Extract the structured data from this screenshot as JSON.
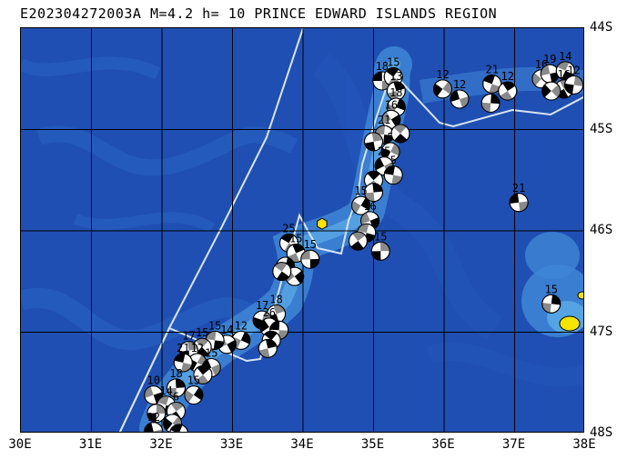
{
  "header": {
    "title": "E202304272003A M=4.2 h= 10 PRINCE EDWARD ISLANDS REGION"
  },
  "map": {
    "longitude_labels": [
      "30E",
      "31E",
      "32E",
      "33E",
      "34E",
      "35E",
      "36E",
      "37E",
      "38E"
    ],
    "latitude_labels": [
      "44S",
      "45S",
      "46S",
      "47S",
      "48S"
    ],
    "colors": {
      "ocean_deep": "#1f4fb3",
      "ocean_mid": "#2a63c6",
      "ridge": "#3f86d6",
      "shallow": "#5aa7e6",
      "island": "#f5e400",
      "plate_boundary": "#d8e4f2",
      "grid": "#000000",
      "event_marker": "#ffe600"
    },
    "event": {
      "lon": 34.27,
      "lat": 45.93
    },
    "mechanisms": [
      {
        "lon": 35.12,
        "lat": 44.52,
        "label": "18"
      },
      {
        "lon": 35.28,
        "lat": 44.48,
        "label": "15"
      },
      {
        "lon": 35.32,
        "lat": 44.62,
        "label": "13"
      },
      {
        "lon": 35.32,
        "lat": 44.78,
        "label": "18"
      },
      {
        "lon": 35.25,
        "lat": 44.9,
        "label": "16"
      },
      {
        "lon": 35.15,
        "lat": 45.05,
        "label": "21"
      },
      {
        "lon": 35.38,
        "lat": 45.04,
        "label": ""
      },
      {
        "lon": 35.0,
        "lat": 45.12,
        "label": ""
      },
      {
        "lon": 35.24,
        "lat": 45.22,
        "label": "5"
      },
      {
        "lon": 35.15,
        "lat": 45.36,
        "label": "25"
      },
      {
        "lon": 35.28,
        "lat": 45.45,
        "label": "5"
      },
      {
        "lon": 35.0,
        "lat": 45.5,
        "label": ""
      },
      {
        "lon": 35.0,
        "lat": 45.62,
        "label": ""
      },
      {
        "lon": 34.82,
        "lat": 45.75,
        "label": "15"
      },
      {
        "lon": 34.95,
        "lat": 45.9,
        "label": "16"
      },
      {
        "lon": 34.9,
        "lat": 46.02,
        "label": ""
      },
      {
        "lon": 34.78,
        "lat": 46.1,
        "label": ""
      },
      {
        "lon": 35.1,
        "lat": 46.2,
        "label": "15"
      },
      {
        "lon": 35.98,
        "lat": 44.6,
        "label": "12"
      },
      {
        "lon": 36.22,
        "lat": 44.7,
        "label": "12"
      },
      {
        "lon": 36.68,
        "lat": 44.55,
        "label": "21"
      },
      {
        "lon": 36.9,
        "lat": 44.62,
        "label": "12"
      },
      {
        "lon": 36.66,
        "lat": 44.74,
        "label": ""
      },
      {
        "lon": 37.38,
        "lat": 44.5,
        "label": "16"
      },
      {
        "lon": 37.5,
        "lat": 44.45,
        "label": "19"
      },
      {
        "lon": 37.72,
        "lat": 44.42,
        "label": "14"
      },
      {
        "lon": 37.7,
        "lat": 44.6,
        "label": "16"
      },
      {
        "lon": 37.84,
        "lat": 44.56,
        "label": "12"
      },
      {
        "lon": 37.52,
        "lat": 44.62,
        "label": ""
      },
      {
        "lon": 37.06,
        "lat": 45.72,
        "label": "21"
      },
      {
        "lon": 33.8,
        "lat": 46.12,
        "label": "25"
      },
      {
        "lon": 33.9,
        "lat": 46.22,
        "label": "15"
      },
      {
        "lon": 33.75,
        "lat": 46.35,
        "label": ""
      },
      {
        "lon": 33.88,
        "lat": 46.45,
        "label": ""
      },
      {
        "lon": 34.1,
        "lat": 46.28,
        "label": "15"
      },
      {
        "lon": 33.7,
        "lat": 46.4,
        "label": ""
      },
      {
        "lon": 33.62,
        "lat": 46.82,
        "label": "18"
      },
      {
        "lon": 33.42,
        "lat": 46.88,
        "label": "17"
      },
      {
        "lon": 33.52,
        "lat": 46.95,
        "label": "26"
      },
      {
        "lon": 33.66,
        "lat": 46.98,
        "label": ""
      },
      {
        "lon": 33.55,
        "lat": 47.08,
        "label": ""
      },
      {
        "lon": 33.5,
        "lat": 47.16,
        "label": ""
      },
      {
        "lon": 33.12,
        "lat": 47.08,
        "label": "12"
      },
      {
        "lon": 32.92,
        "lat": 47.12,
        "label": "14"
      },
      {
        "lon": 32.75,
        "lat": 47.08,
        "label": "15"
      },
      {
        "lon": 32.57,
        "lat": 47.15,
        "label": "15"
      },
      {
        "lon": 32.38,
        "lat": 47.18,
        "label": "17"
      },
      {
        "lon": 32.5,
        "lat": 47.3,
        "label": "12"
      },
      {
        "lon": 32.7,
        "lat": 47.35,
        "label": "15"
      },
      {
        "lon": 32.3,
        "lat": 47.3,
        "label": "21"
      },
      {
        "lon": 32.58,
        "lat": 47.42,
        "label": ""
      },
      {
        "lon": 32.2,
        "lat": 47.55,
        "label": "18"
      },
      {
        "lon": 32.45,
        "lat": 47.62,
        "label": "15"
      },
      {
        "lon": 31.88,
        "lat": 47.62,
        "label": "10"
      },
      {
        "lon": 32.06,
        "lat": 47.72,
        "label": "14"
      },
      {
        "lon": 32.2,
        "lat": 47.78,
        "label": "6"
      },
      {
        "lon": 31.92,
        "lat": 47.8,
        "label": ""
      },
      {
        "lon": 32.15,
        "lat": 47.9,
        "label": ""
      },
      {
        "lon": 31.88,
        "lat": 47.98,
        "label": "12"
      },
      {
        "lon": 32.24,
        "lat": 48.0,
        "label": ""
      },
      {
        "lon": 31.98,
        "lat": 48.08,
        "label": ""
      },
      {
        "lon": 37.52,
        "lat": 46.72,
        "label": "15"
      }
    ]
  }
}
